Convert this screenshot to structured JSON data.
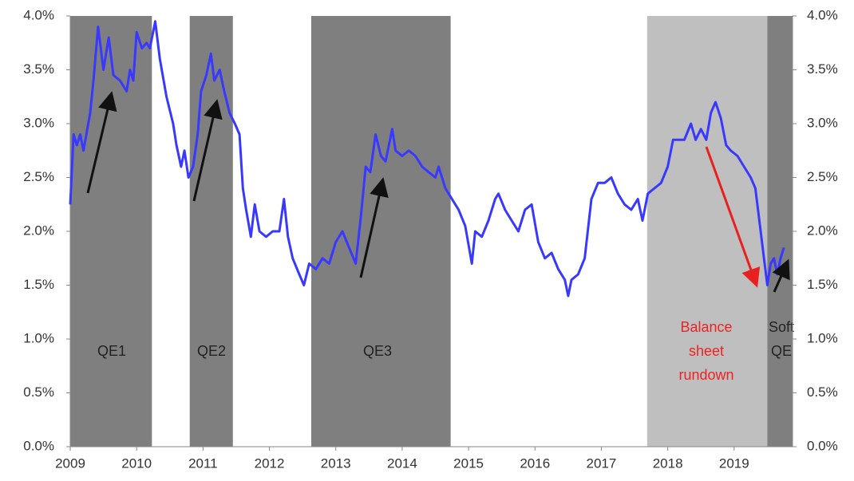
{
  "chart_data": {
    "type": "line",
    "xlim": [
      2009,
      2019.88
    ],
    "xticks": [
      2009,
      2010,
      2011,
      2012,
      2013,
      2014,
      2015,
      2016,
      2017,
      2018,
      2019
    ],
    "ylim": [
      0,
      4
    ],
    "yticks": [
      {
        "value": 0,
        "label": "0.0%"
      },
      {
        "value": 0.5,
        "label": "0.5%"
      },
      {
        "value": 1,
        "label": "1.0%"
      },
      {
        "value": 1.5,
        "label": "1.5%"
      },
      {
        "value": 2,
        "label": "2.0%"
      },
      {
        "value": 2.5,
        "label": "2.5%"
      },
      {
        "value": 3,
        "label": "3.0%"
      },
      {
        "value": 3.5,
        "label": "3.5%"
      },
      {
        "value": 4,
        "label": "4.0%"
      }
    ],
    "y2lim": [
      0,
      4
    ],
    "y2ticks": [
      {
        "value": 0,
        "label": "0.0%"
      },
      {
        "value": 0.5,
        "label": "0.5%"
      },
      {
        "value": 1,
        "label": "1.0%"
      },
      {
        "value": 1.5,
        "label": "1.5%"
      },
      {
        "value": 2,
        "label": "2.0%"
      },
      {
        "value": 2.5,
        "label": "2.5%"
      },
      {
        "value": 3,
        "label": "3.0%"
      },
      {
        "value": 3.5,
        "label": "3.5%"
      },
      {
        "value": 4,
        "label": "4.0%"
      }
    ],
    "regions": [
      {
        "name": "QE1",
        "start": 2009,
        "end": 2010.23,
        "color": "#7f7f7f",
        "label_color": "#222222"
      },
      {
        "name": "QE2",
        "start": 2010.8,
        "end": 2011.45,
        "color": "#7f7f7f",
        "label_color": "#222222"
      },
      {
        "name": "QE3",
        "start": 2012.63,
        "end": 2014.73,
        "color": "#7f7f7f",
        "label_color": "#222222"
      },
      {
        "name": "Balance sheet rundown",
        "start": 2017.69,
        "end": 2019.5,
        "color": "#bfbfbf",
        "label_color": "#ee2222"
      },
      {
        "name": "Soft QE",
        "start": 2019.5,
        "end": 2019.88,
        "color": "#7f7f7f",
        "label_color": "#222222"
      }
    ],
    "x": [
      2009.0,
      2009.05,
      2009.1,
      2009.15,
      2009.2,
      2009.3,
      2009.35,
      2009.42,
      2009.5,
      2009.58,
      2009.65,
      2009.75,
      2009.85,
      2009.9,
      2009.95,
      2010.0,
      2010.08,
      2010.15,
      2010.2,
      2010.28,
      2010.35,
      2010.45,
      2010.55,
      2010.6,
      2010.67,
      2010.72,
      2010.78,
      2010.85,
      2010.92,
      2010.97,
      2011.05,
      2011.12,
      2011.17,
      2011.25,
      2011.32,
      2011.4,
      2011.48,
      2011.55,
      2011.6,
      2011.65,
      2011.72,
      2011.78,
      2011.85,
      2011.95,
      2012.05,
      2012.15,
      2012.22,
      2012.28,
      2012.35,
      2012.45,
      2012.52,
      2012.6,
      2012.7,
      2012.8,
      2012.9,
      2013.0,
      2013.1,
      2013.2,
      2013.3,
      2013.38,
      2013.45,
      2013.52,
      2013.6,
      2013.68,
      2013.75,
      2013.85,
      2013.9,
      2014.0,
      2014.1,
      2014.2,
      2014.3,
      2014.4,
      2014.5,
      2014.55,
      2014.65,
      2014.75,
      2014.85,
      2014.95,
      2015.05,
      2015.1,
      2015.2,
      2015.3,
      2015.4,
      2015.45,
      2015.55,
      2015.65,
      2015.75,
      2015.85,
      2015.95,
      2016.05,
      2016.15,
      2016.25,
      2016.35,
      2016.45,
      2016.5,
      2016.55,
      2016.65,
      2016.75,
      2016.85,
      2016.95,
      2017.05,
      2017.15,
      2017.25,
      2017.35,
      2017.45,
      2017.55,
      2017.62,
      2017.7,
      2017.8,
      2017.9,
      2018.0,
      2018.08,
      2018.15,
      2018.25,
      2018.35,
      2018.42,
      2018.5,
      2018.58,
      2018.65,
      2018.72,
      2018.8,
      2018.88,
      2018.95,
      2019.05,
      2019.15,
      2019.25,
      2019.32,
      2019.38,
      2019.45,
      2019.5,
      2019.55,
      2019.6,
      2019.65,
      2019.7,
      2019.75
    ],
    "series": [
      {
        "color": "#3838ff",
        "values": [
          2.25,
          2.9,
          2.8,
          2.9,
          2.75,
          3.1,
          3.4,
          3.9,
          3.5,
          3.8,
          3.45,
          3.4,
          3.3,
          3.5,
          3.4,
          3.85,
          3.7,
          3.75,
          3.7,
          3.95,
          3.6,
          3.25,
          3.0,
          2.8,
          2.6,
          2.75,
          2.5,
          2.6,
          2.9,
          3.3,
          3.45,
          3.65,
          3.4,
          3.5,
          3.3,
          3.1,
          3.0,
          2.9,
          2.4,
          2.2,
          1.95,
          2.25,
          2.0,
          1.95,
          2.0,
          2.0,
          2.3,
          1.95,
          1.75,
          1.6,
          1.5,
          1.7,
          1.65,
          1.75,
          1.7,
          1.9,
          2.0,
          1.85,
          1.7,
          2.15,
          2.6,
          2.55,
          2.9,
          2.7,
          2.65,
          2.95,
          2.75,
          2.7,
          2.75,
          2.7,
          2.6,
          2.55,
          2.5,
          2.6,
          2.4,
          2.3,
          2.2,
          2.05,
          1.7,
          2.0,
          1.95,
          2.1,
          2.3,
          2.35,
          2.2,
          2.1,
          2.0,
          2.2,
          2.25,
          1.9,
          1.75,
          1.8,
          1.65,
          1.55,
          1.4,
          1.55,
          1.6,
          1.75,
          2.3,
          2.45,
          2.45,
          2.5,
          2.35,
          2.25,
          2.2,
          2.3,
          2.1,
          2.35,
          2.4,
          2.45,
          2.6,
          2.85,
          2.85,
          2.85,
          3.0,
          2.85,
          2.95,
          2.85,
          3.1,
          3.2,
          3.05,
          2.8,
          2.75,
          2.7,
          2.6,
          2.5,
          2.4,
          2.1,
          1.75,
          1.5,
          1.7,
          1.75,
          1.6,
          1.75,
          1.85
        ]
      }
    ]
  }
}
